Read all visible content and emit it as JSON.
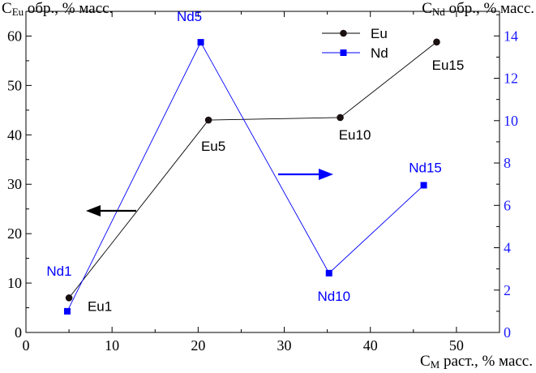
{
  "chart_data": {
    "type": "line",
    "left_axis_title": {
      "main": "C",
      "sub": "Eu",
      "rest": " обр., % масс."
    },
    "right_axis_title": {
      "main": "C",
      "sub": "Nd",
      "rest": " обр., % масс."
    },
    "x_axis_title": {
      "main": "C",
      "sub": "M",
      "rest": " раст., % масс."
    },
    "xlim": [
      0,
      55
    ],
    "ylim_left": [
      0,
      65
    ],
    "ylim_right": [
      0,
      15.16
    ],
    "x_ticks": [
      "0",
      "10",
      "20",
      "30",
      "40",
      "50"
    ],
    "y_left_ticks": [
      "0",
      "10",
      "20",
      "30",
      "40",
      "50",
      "60"
    ],
    "y_right_ticks": [
      "0",
      "2",
      "4",
      "6",
      "8",
      "10",
      "12",
      "14"
    ],
    "colors": {
      "eu": "#000000",
      "nd": "#0000ff",
      "right_axis": "#1a1aff"
    },
    "series": [
      {
        "name": "Eu",
        "axis": "left",
        "marker": "circle",
        "points": [
          {
            "x": 5.0,
            "y": 7.0,
            "label": "Eu1"
          },
          {
            "x": 21.2,
            "y": 43.0,
            "label": "Eu5"
          },
          {
            "x": 36.5,
            "y": 43.5,
            "label": "Eu10"
          },
          {
            "x": 47.7,
            "y": 58.8,
            "label": "Eu15"
          }
        ]
      },
      {
        "name": "Nd",
        "axis": "right",
        "marker": "square",
        "points": [
          {
            "x": 4.8,
            "y": 1.0,
            "label": "Nd1"
          },
          {
            "x": 20.3,
            "y": 13.7,
            "label": "Nd5"
          },
          {
            "x": 35.2,
            "y": 2.8,
            "label": "Nd10"
          },
          {
            "x": 46.2,
            "y": 6.95,
            "label": "Nd15"
          }
        ]
      }
    ],
    "legend": {
      "position": "top-right",
      "entries": [
        "Eu",
        "Nd"
      ]
    },
    "arrows": [
      {
        "direction": "left",
        "points_to": "left axis"
      },
      {
        "direction": "right",
        "points_to": "right axis"
      }
    ],
    "grid": false
  }
}
